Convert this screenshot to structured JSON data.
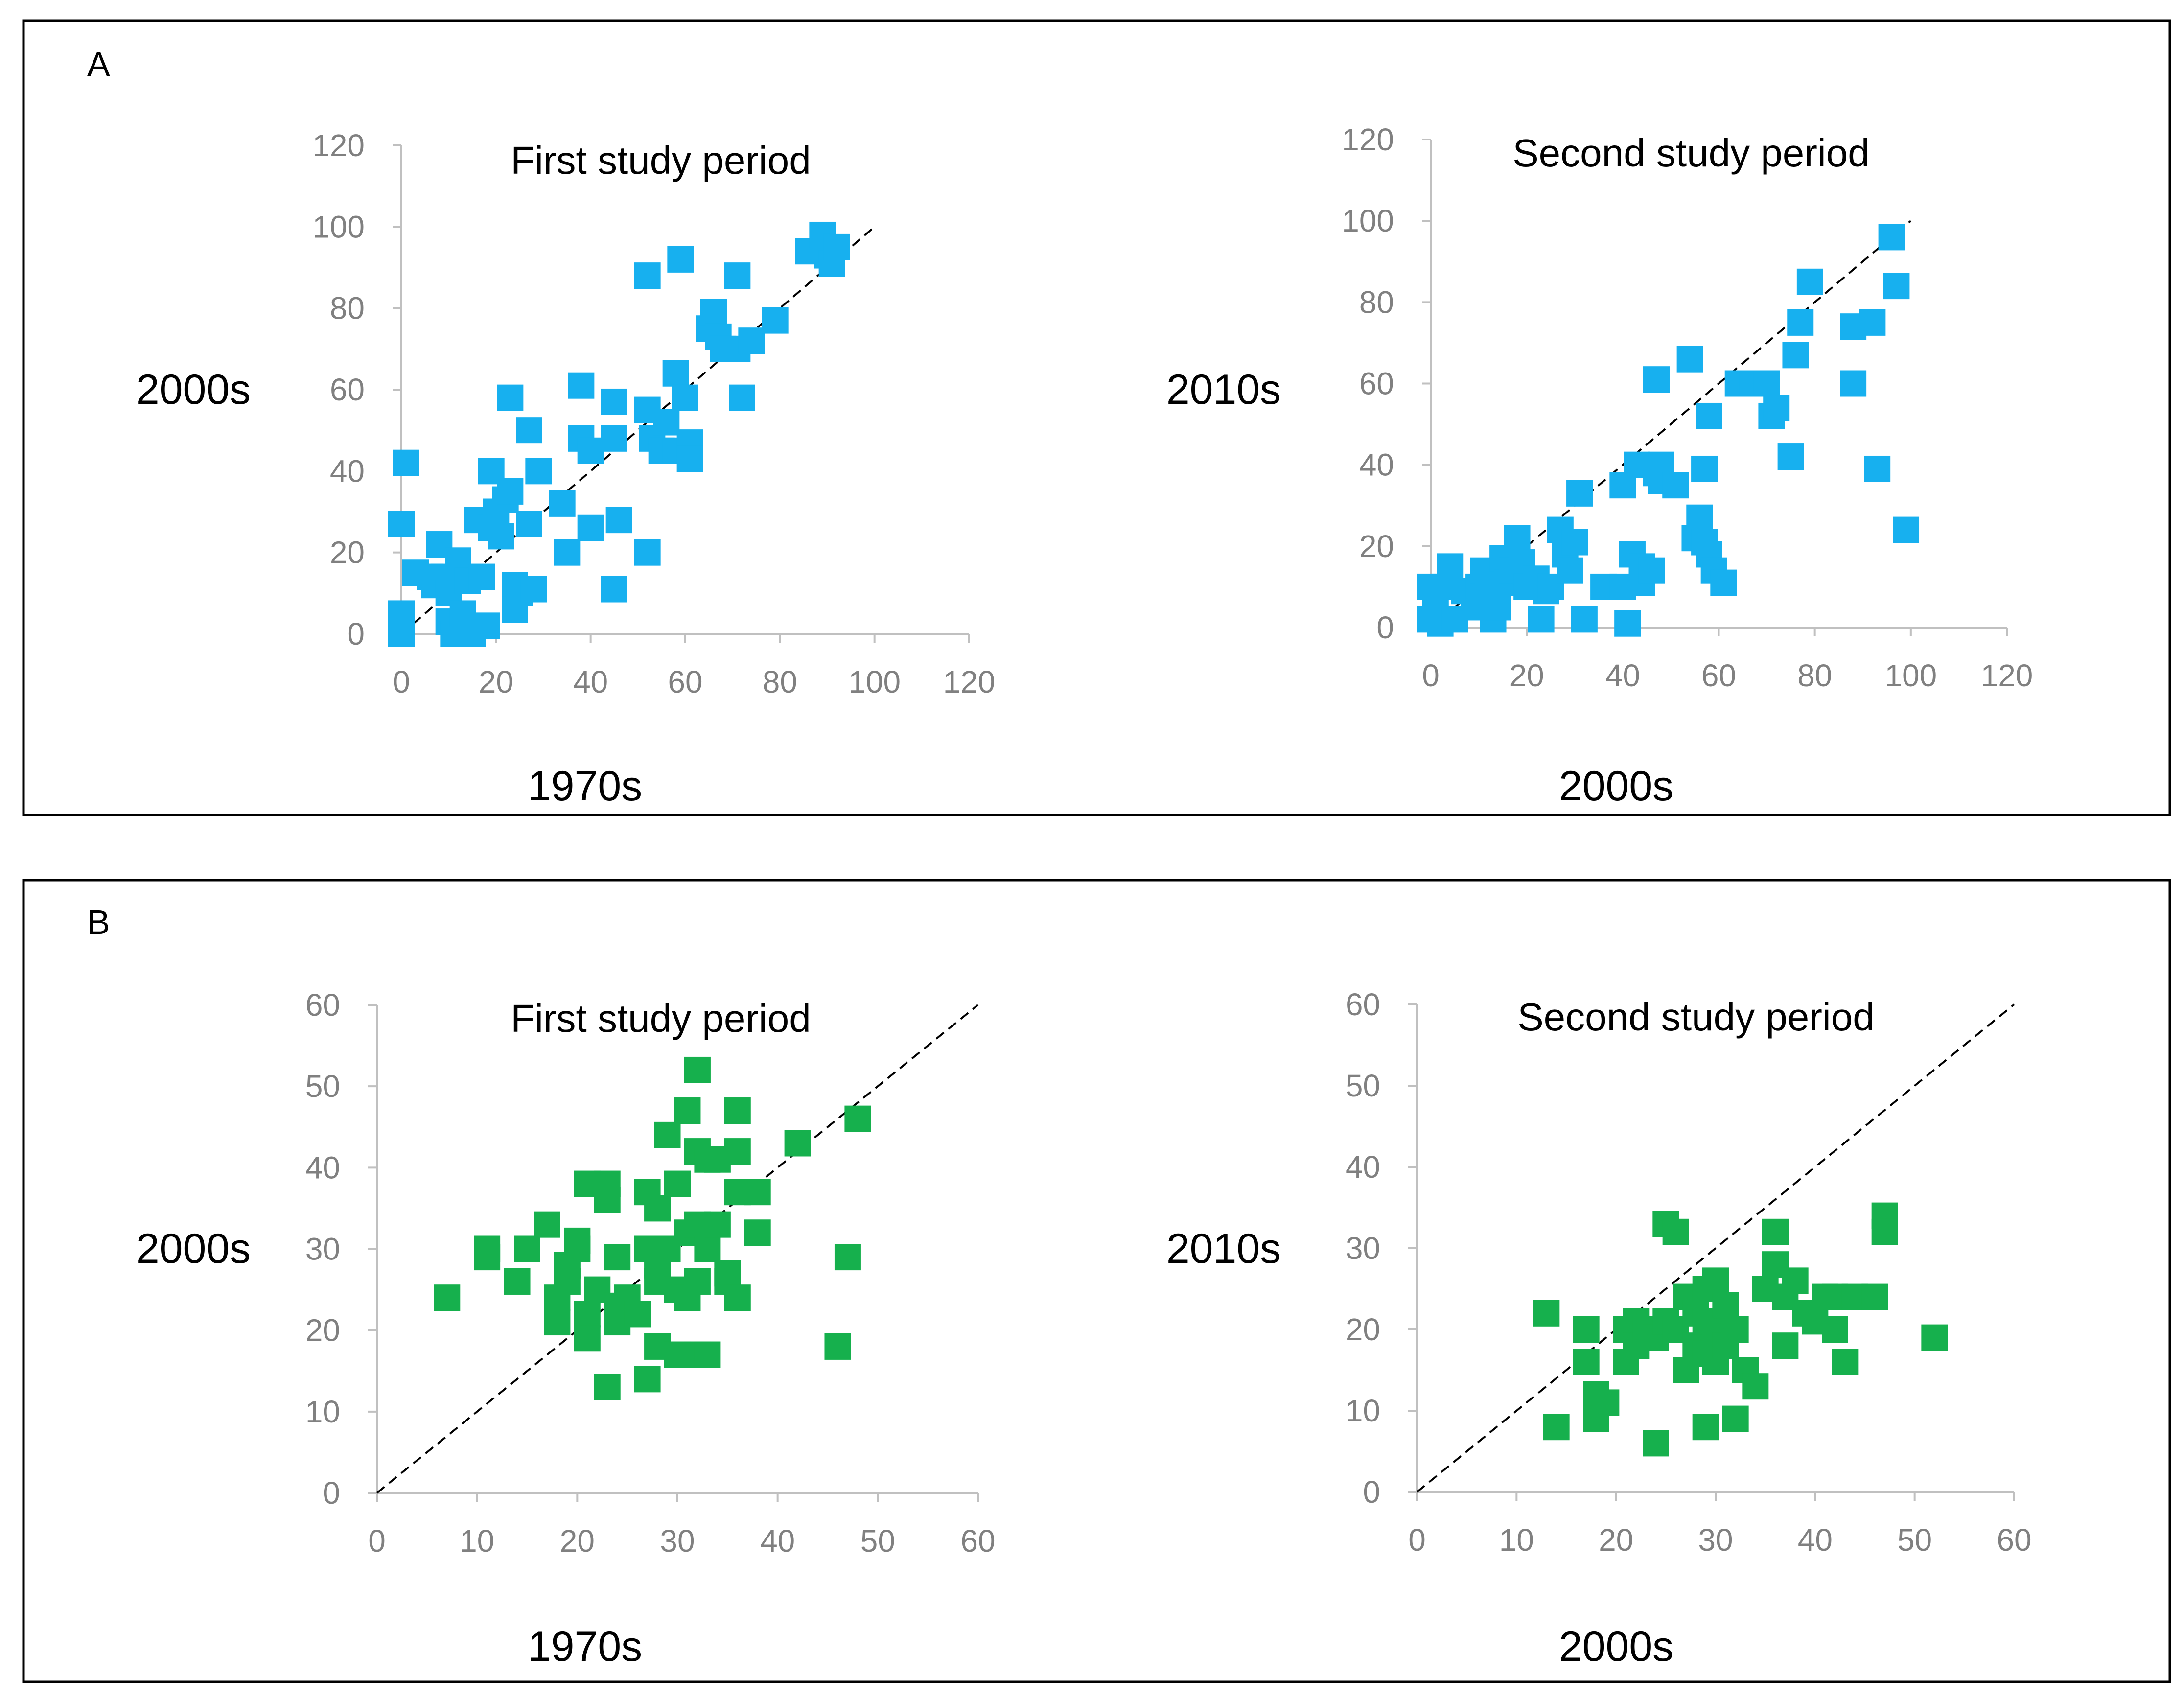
{
  "panels": [
    {
      "label": "A"
    },
    {
      "label": "B"
    }
  ],
  "colors": {
    "blue": "#17b0ef",
    "green": "#16b04d",
    "axis": "#c0c0c0",
    "tick": "#808080"
  },
  "chart_data": [
    {
      "type": "scatter",
      "panel": "A",
      "title": "First study period",
      "xlabel": "1970s",
      "ylabel": "2000s",
      "xlim": [
        0,
        120
      ],
      "ylim": [
        0,
        120
      ],
      "xticks": [
        0,
        20,
        40,
        60,
        80,
        100,
        120
      ],
      "yticks": [
        0,
        20,
        40,
        60,
        80,
        100,
        120
      ],
      "reference_line": {
        "from": [
          0,
          0
        ],
        "to": [
          100,
          100
        ],
        "style": "dashed"
      },
      "color": "#17b0ef",
      "points": [
        [
          0,
          27
        ],
        [
          0,
          5
        ],
        [
          0,
          0
        ],
        [
          1,
          42
        ],
        [
          3,
          15
        ],
        [
          6,
          14
        ],
        [
          7,
          12
        ],
        [
          8,
          22
        ],
        [
          9,
          14
        ],
        [
          10,
          10
        ],
        [
          10,
          3
        ],
        [
          11,
          0
        ],
        [
          12,
          18
        ],
        [
          13,
          5
        ],
        [
          14,
          13
        ],
        [
          15,
          0
        ],
        [
          16,
          28
        ],
        [
          17,
          14
        ],
        [
          18,
          2
        ],
        [
          19,
          26
        ],
        [
          19,
          40
        ],
        [
          20,
          30
        ],
        [
          21,
          24
        ],
        [
          22,
          33
        ],
        [
          23,
          35
        ],
        [
          23,
          58
        ],
        [
          24,
          12
        ],
        [
          24,
          6
        ],
        [
          25,
          10
        ],
        [
          27,
          50
        ],
        [
          27,
          27
        ],
        [
          28,
          11
        ],
        [
          29,
          40
        ],
        [
          34,
          32
        ],
        [
          35,
          20
        ],
        [
          38,
          61
        ],
        [
          38,
          48
        ],
        [
          40,
          45
        ],
        [
          40,
          26
        ],
        [
          45,
          57
        ],
        [
          45,
          48
        ],
        [
          45,
          11
        ],
        [
          46,
          28
        ],
        [
          52,
          55
        ],
        [
          52,
          88
        ],
        [
          52,
          20
        ],
        [
          53,
          48
        ],
        [
          55,
          45
        ],
        [
          56,
          52
        ],
        [
          58,
          45
        ],
        [
          58,
          64
        ],
        [
          59,
          92
        ],
        [
          60,
          58
        ],
        [
          61,
          47
        ],
        [
          61,
          43
        ],
        [
          65,
          75
        ],
        [
          66,
          79
        ],
        [
          67,
          73
        ],
        [
          68,
          70
        ],
        [
          71,
          88
        ],
        [
          71,
          70
        ],
        [
          72,
          58
        ],
        [
          74,
          72
        ],
        [
          79,
          77
        ],
        [
          86,
          94
        ],
        [
          89,
          98
        ],
        [
          90,
          93
        ],
        [
          91,
          91
        ],
        [
          92,
          95
        ]
      ]
    },
    {
      "type": "scatter",
      "panel": "A",
      "title": "Second study period",
      "xlabel": "2000s",
      "ylabel": "2010s",
      "xlim": [
        0,
        120
      ],
      "ylim": [
        0,
        120
      ],
      "xticks": [
        0,
        20,
        40,
        60,
        80,
        100,
        120
      ],
      "yticks": [
        0,
        20,
        40,
        60,
        80,
        100,
        120
      ],
      "reference_line": {
        "from": [
          0,
          0
        ],
        "to": [
          100,
          100
        ],
        "style": "dashed"
      },
      "color": "#17b0ef",
      "points": [
        [
          0,
          10
        ],
        [
          0,
          2
        ],
        [
          1,
          6
        ],
        [
          2,
          1
        ],
        [
          3,
          10
        ],
        [
          4,
          15
        ],
        [
          5,
          2
        ],
        [
          7,
          9
        ],
        [
          9,
          5
        ],
        [
          10,
          10
        ],
        [
          11,
          14
        ],
        [
          12,
          8
        ],
        [
          13,
          2
        ],
        [
          14,
          5
        ],
        [
          15,
          17
        ],
        [
          16,
          11
        ],
        [
          17,
          14
        ],
        [
          18,
          22
        ],
        [
          19,
          16
        ],
        [
          20,
          10
        ],
        [
          22,
          12
        ],
        [
          23,
          2
        ],
        [
          24,
          9
        ],
        [
          25,
          10
        ],
        [
          27,
          24
        ],
        [
          28,
          18
        ],
        [
          29,
          14
        ],
        [
          30,
          21
        ],
        [
          31,
          33
        ],
        [
          32,
          2
        ],
        [
          36,
          10
        ],
        [
          40,
          35
        ],
        [
          40,
          10
        ],
        [
          41,
          1
        ],
        [
          42,
          18
        ],
        [
          43,
          40
        ],
        [
          44,
          11
        ],
        [
          44,
          15
        ],
        [
          46,
          14
        ],
        [
          47,
          61
        ],
        [
          47,
          38
        ],
        [
          48,
          36
        ],
        [
          48,
          40
        ],
        [
          51,
          35
        ],
        [
          54,
          66
        ],
        [
          55,
          22
        ],
        [
          56,
          27
        ],
        [
          57,
          39
        ],
        [
          57,
          21
        ],
        [
          58,
          52
        ],
        [
          58,
          18
        ],
        [
          59,
          14
        ],
        [
          61,
          11
        ],
        [
          64,
          60
        ],
        [
          67,
          60
        ],
        [
          70,
          60
        ],
        [
          71,
          52
        ],
        [
          72,
          54
        ],
        [
          75,
          42
        ],
        [
          76,
          67
        ],
        [
          77,
          75
        ],
        [
          79,
          85
        ],
        [
          88,
          60
        ],
        [
          88,
          74
        ],
        [
          92,
          75
        ],
        [
          93,
          39
        ],
        [
          96,
          96
        ],
        [
          97,
          84
        ],
        [
          99,
          24
        ]
      ]
    },
    {
      "type": "scatter",
      "panel": "B",
      "title": "First study period",
      "xlabel": "1970s",
      "ylabel": "2000s",
      "xlim": [
        0,
        60
      ],
      "ylim": [
        0,
        60
      ],
      "xticks": [
        0,
        10,
        20,
        30,
        40,
        50,
        60
      ],
      "yticks": [
        0,
        10,
        20,
        30,
        40,
        50,
        60
      ],
      "reference_line": {
        "from": [
          0,
          0
        ],
        "to": [
          60,
          60
        ],
        "style": "dashed"
      },
      "color": "#16b04d",
      "points": [
        [
          7,
          24
        ],
        [
          11,
          30
        ],
        [
          11,
          29
        ],
        [
          14,
          26
        ],
        [
          15,
          30
        ],
        [
          17,
          33
        ],
        [
          18,
          24
        ],
        [
          18,
          21
        ],
        [
          19,
          28
        ],
        [
          19,
          26
        ],
        [
          20,
          31
        ],
        [
          20,
          30
        ],
        [
          21,
          38
        ],
        [
          21,
          22
        ],
        [
          21,
          19
        ],
        [
          22,
          25
        ],
        [
          23,
          38
        ],
        [
          23,
          36
        ],
        [
          23,
          13
        ],
        [
          24,
          29
        ],
        [
          24,
          23
        ],
        [
          24,
          21
        ],
        [
          25,
          24
        ],
        [
          26,
          22
        ],
        [
          27,
          37
        ],
        [
          27,
          30
        ],
        [
          27,
          14
        ],
        [
          28,
          35
        ],
        [
          28,
          28
        ],
        [
          28,
          26
        ],
        [
          28,
          18
        ],
        [
          29,
          44
        ],
        [
          29,
          30
        ],
        [
          30,
          38
        ],
        [
          30,
          25
        ],
        [
          30,
          17
        ],
        [
          31,
          47
        ],
        [
          31,
          32
        ],
        [
          31,
          24
        ],
        [
          32,
          52
        ],
        [
          32,
          42
        ],
        [
          32,
          33
        ],
        [
          32,
          26
        ],
        [
          32,
          17
        ],
        [
          33,
          41
        ],
        [
          33,
          30
        ],
        [
          33,
          17
        ],
        [
          34,
          41
        ],
        [
          34,
          33
        ],
        [
          35,
          27
        ],
        [
          35,
          26
        ],
        [
          36,
          47
        ],
        [
          36,
          42
        ],
        [
          36,
          37
        ],
        [
          36,
          24
        ],
        [
          38,
          37
        ],
        [
          38,
          32
        ],
        [
          42,
          43
        ],
        [
          46,
          18
        ],
        [
          47,
          29
        ],
        [
          48,
          46
        ]
      ]
    },
    {
      "type": "scatter",
      "panel": "B",
      "title": "Second study period",
      "xlabel": "2000s",
      "ylabel": "2010s",
      "xlim": [
        0,
        60
      ],
      "ylim": [
        0,
        60
      ],
      "xticks": [
        0,
        10,
        20,
        30,
        40,
        50,
        60
      ],
      "yticks": [
        0,
        10,
        20,
        30,
        40,
        50,
        60
      ],
      "reference_line": {
        "from": [
          0,
          0
        ],
        "to": [
          60,
          60
        ],
        "style": "dashed"
      },
      "color": "#16b04d",
      "points": [
        [
          13,
          22
        ],
        [
          14,
          8
        ],
        [
          17,
          20
        ],
        [
          17,
          16
        ],
        [
          18,
          12
        ],
        [
          18,
          9
        ],
        [
          19,
          11
        ],
        [
          21,
          20
        ],
        [
          21,
          16
        ],
        [
          22,
          21
        ],
        [
          22,
          18
        ],
        [
          23,
          20
        ],
        [
          24,
          19
        ],
        [
          24,
          6
        ],
        [
          25,
          33
        ],
        [
          25,
          21
        ],
        [
          26,
          32
        ],
        [
          26,
          20
        ],
        [
          27,
          24
        ],
        [
          27,
          15
        ],
        [
          28,
          22
        ],
        [
          28,
          18
        ],
        [
          29,
          25
        ],
        [
          29,
          21
        ],
        [
          29,
          17
        ],
        [
          29,
          8
        ],
        [
          30,
          26
        ],
        [
          30,
          20
        ],
        [
          30,
          16
        ],
        [
          31,
          23
        ],
        [
          31,
          18
        ],
        [
          32,
          9
        ],
        [
          32,
          20
        ],
        [
          33,
          15
        ],
        [
          34,
          13
        ],
        [
          35,
          25
        ],
        [
          36,
          32
        ],
        [
          36,
          28
        ],
        [
          37,
          18
        ],
        [
          37,
          24
        ],
        [
          38,
          26
        ],
        [
          39,
          22
        ],
        [
          40,
          21
        ],
        [
          41,
          24
        ],
        [
          42,
          24
        ],
        [
          42,
          20
        ],
        [
          43,
          16
        ],
        [
          44,
          24
        ],
        [
          46,
          24
        ],
        [
          47,
          34
        ],
        [
          47,
          32
        ],
        [
          52,
          19
        ]
      ]
    }
  ]
}
